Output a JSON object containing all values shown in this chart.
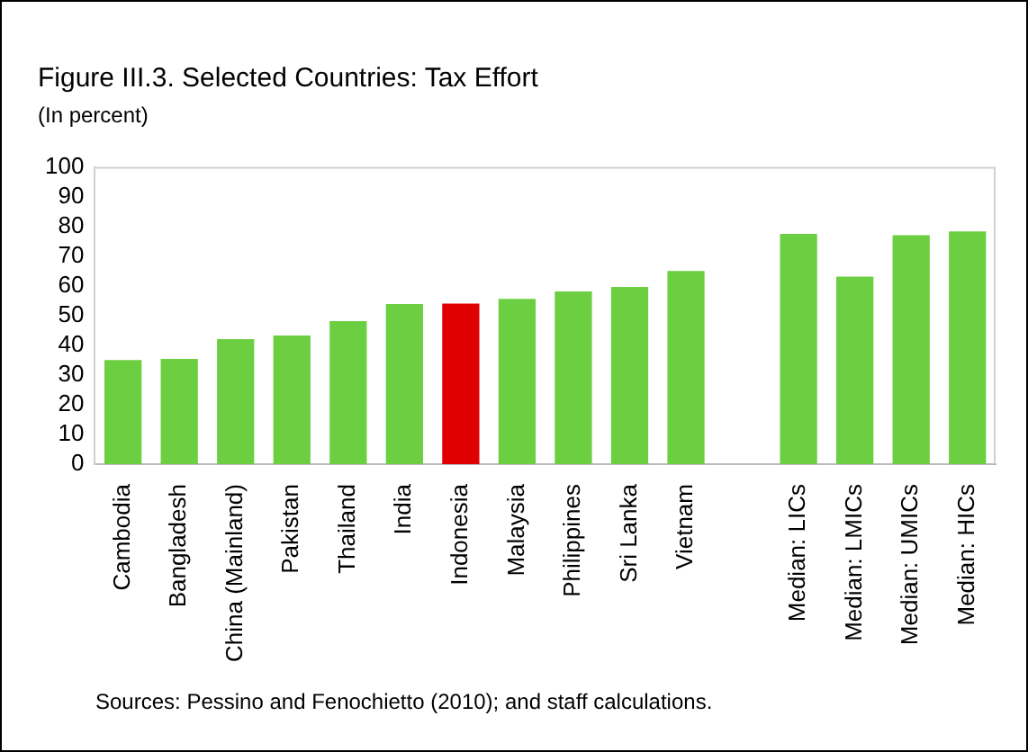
{
  "chart_data": {
    "type": "bar",
    "title": "Figure III.3. Selected Countries: Tax Effort",
    "subtitle": "(In percent)",
    "categories": [
      "Cambodia",
      "Bangladesh",
      "China (Mainland)",
      "Pakistan",
      "Thailand",
      "India",
      "Indonesia",
      "Malaysia",
      "Philippines",
      "Sri Lanka",
      "Vietnam",
      null,
      "Median: LICs",
      "Median: LMICs",
      "Median: UMICs",
      "Median: HICs"
    ],
    "values": [
      35,
      35.4,
      42.1,
      43.3,
      48.1,
      53.9,
      54,
      55.6,
      58.1,
      59.6,
      65,
      null,
      77.5,
      63.1,
      77,
      78.3
    ],
    "colors": [
      "#6ccf41",
      "#6ccf41",
      "#6ccf41",
      "#6ccf41",
      "#6ccf41",
      "#6ccf41",
      "#e00000",
      "#6ccf41",
      "#6ccf41",
      "#6ccf41",
      "#6ccf41",
      "#6ccf41",
      "#6ccf41",
      "#6ccf41",
      "#6ccf41",
      "#6ccf41"
    ],
    "ylim": [
      0,
      100
    ],
    "yticks": [
      0,
      10,
      20,
      30,
      40,
      50,
      60,
      70,
      80,
      90,
      100
    ],
    "grid": false,
    "legend": false,
    "annotations": [
      "Sources: Pessino and Fenochietto (2010); and staff calculations."
    ]
  }
}
